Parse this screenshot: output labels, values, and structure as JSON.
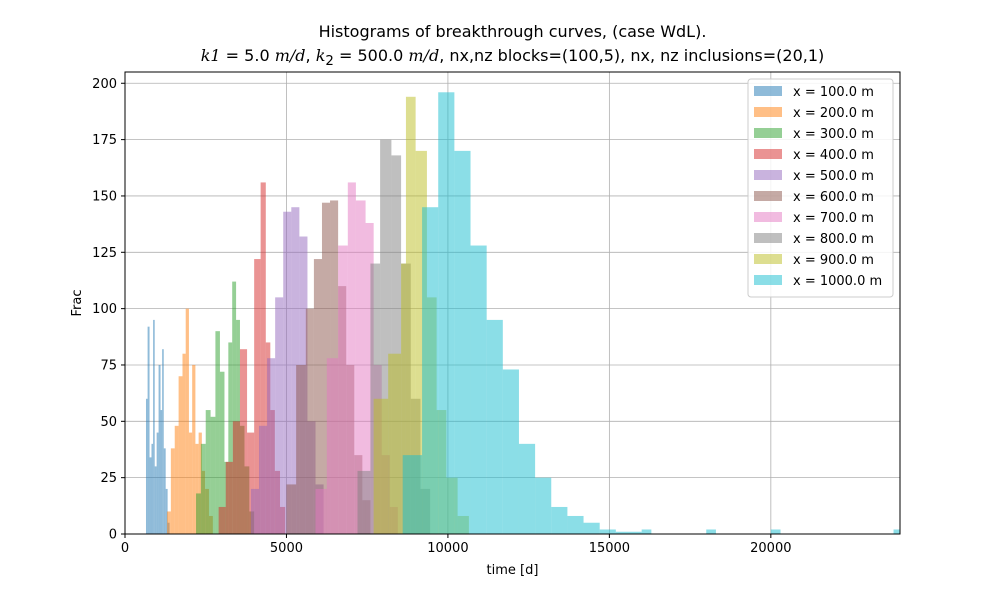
{
  "chart_data": {
    "type": "histogram",
    "title": "Histograms of breakthrough curves, (case WdL).",
    "subtitle": "k1 = 5.0 m/d, k2 = 500.0 m/d, nx,nz blocks=(100,5), nx, nz inclusions=(20,1)",
    "subtitle_parts": {
      "k1": "k1",
      "k1_value": "5.0",
      "k2_base": "k",
      "k2_sub": "2",
      "k2_value": "500.0",
      "unit": "m/d",
      "rest": ", nx,nz blocks=(100,5), nx, nz inclusions=(20,1)"
    },
    "xlabel": "time [d]",
    "ylabel": "Frac",
    "xlim": [
      0,
      24000
    ],
    "ylim": [
      0,
      205
    ],
    "xticks": [
      0,
      5000,
      10000,
      15000,
      20000
    ],
    "yticks": [
      0,
      25,
      50,
      75,
      100,
      125,
      150,
      175,
      200
    ],
    "grid": true,
    "legend_position": "top-right",
    "series": [
      {
        "name": "x = 100.0 m",
        "color": "#1f77b4",
        "bins": [
          [
            650,
            60
          ],
          [
            700,
            92
          ],
          [
            760,
            34
          ],
          [
            820,
            40
          ],
          [
            870,
            95
          ],
          [
            920,
            30
          ],
          [
            980,
            45
          ],
          [
            1040,
            75
          ],
          [
            1100,
            55
          ],
          [
            1150,
            82
          ],
          [
            1200,
            38
          ],
          [
            1260,
            20
          ],
          [
            1320,
            5
          ]
        ]
      },
      {
        "name": "x = 200.0 m",
        "color": "#ff7f0e",
        "bins": [
          [
            1300,
            10
          ],
          [
            1420,
            38
          ],
          [
            1540,
            48
          ],
          [
            1660,
            70
          ],
          [
            1780,
            80
          ],
          [
            1880,
            100
          ],
          [
            1980,
            45
          ],
          [
            2080,
            75
          ],
          [
            2180,
            40
          ],
          [
            2280,
            45
          ],
          [
            2380,
            28
          ],
          [
            2480,
            20
          ],
          [
            2600,
            8
          ]
        ]
      },
      {
        "name": "x = 300.0 m",
        "color": "#2ca02c",
        "bins": [
          [
            2200,
            18
          ],
          [
            2350,
            40
          ],
          [
            2500,
            55
          ],
          [
            2650,
            52
          ],
          [
            2800,
            90
          ],
          [
            2940,
            72
          ],
          [
            3080,
            32
          ],
          [
            3200,
            85
          ],
          [
            3320,
            112
          ],
          [
            3440,
            95
          ],
          [
            3560,
            48
          ],
          [
            3700,
            30
          ],
          [
            3850,
            10
          ]
        ]
      },
      {
        "name": "x = 400.0 m",
        "color": "#d62728",
        "bins": [
          [
            2900,
            12
          ],
          [
            3120,
            32
          ],
          [
            3340,
            50
          ],
          [
            3560,
            82
          ],
          [
            3780,
            45
          ],
          [
            4000,
            122
          ],
          [
            4200,
            156
          ],
          [
            4360,
            85
          ],
          [
            4500,
            55
          ],
          [
            4640,
            28
          ],
          [
            4800,
            12
          ]
        ]
      },
      {
        "name": "x = 500.0 m",
        "color": "#9467bd",
        "bins": [
          [
            3900,
            20
          ],
          [
            4150,
            48
          ],
          [
            4400,
            78
          ],
          [
            4650,
            105
          ],
          [
            4900,
            143
          ],
          [
            5150,
            145
          ],
          [
            5400,
            132
          ],
          [
            5650,
            50
          ],
          [
            5900,
            22
          ]
        ]
      },
      {
        "name": "x = 600.0 m",
        "color": "#8c564b",
        "bins": [
          [
            5000,
            22
          ],
          [
            5300,
            75
          ],
          [
            5600,
            100
          ],
          [
            5850,
            122
          ],
          [
            6100,
            147
          ],
          [
            6350,
            148
          ],
          [
            6600,
            110
          ],
          [
            6850,
            75
          ],
          [
            7100,
            35
          ],
          [
            7350,
            15
          ]
        ]
      },
      {
        "name": "x = 700.0 m",
        "color": "#e377c2",
        "bins": [
          [
            5900,
            20
          ],
          [
            6250,
            78
          ],
          [
            6600,
            128
          ],
          [
            6900,
            156
          ],
          [
            7150,
            148
          ],
          [
            7450,
            138
          ],
          [
            7700,
            75
          ],
          [
            7950,
            35
          ],
          [
            8200,
            12
          ]
        ]
      },
      {
        "name": "x = 800.0 m",
        "color": "#7f7f7f",
        "bins": [
          [
            7200,
            28
          ],
          [
            7600,
            120
          ],
          [
            7900,
            175
          ],
          [
            8250,
            168
          ],
          [
            8550,
            120
          ],
          [
            8850,
            60
          ],
          [
            9150,
            20
          ]
        ]
      },
      {
        "name": "x = 900.0 m",
        "color": "#bcbd22",
        "bins": [
          [
            7700,
            60
          ],
          [
            8150,
            80
          ],
          [
            8550,
            120
          ],
          [
            8700,
            194
          ],
          [
            9000,
            170
          ],
          [
            9350,
            105
          ],
          [
            9650,
            55
          ],
          [
            9950,
            25
          ],
          [
            10300,
            8
          ]
        ]
      },
      {
        "name": "x = 1000.0 m",
        "color": "#17becf",
        "bins": [
          [
            8600,
            35
          ],
          [
            9200,
            145
          ],
          [
            9700,
            196
          ],
          [
            10200,
            170
          ],
          [
            10700,
            128
          ],
          [
            11200,
            95
          ],
          [
            11700,
            73
          ],
          [
            12200,
            40
          ],
          [
            12700,
            25
          ],
          [
            13200,
            12
          ],
          [
            13700,
            8
          ],
          [
            14200,
            5
          ],
          [
            14700,
            2
          ],
          [
            15200,
            1
          ],
          [
            16000,
            2
          ],
          [
            18000,
            2
          ],
          [
            20000,
            2
          ],
          [
            23800,
            2
          ]
        ]
      }
    ]
  }
}
